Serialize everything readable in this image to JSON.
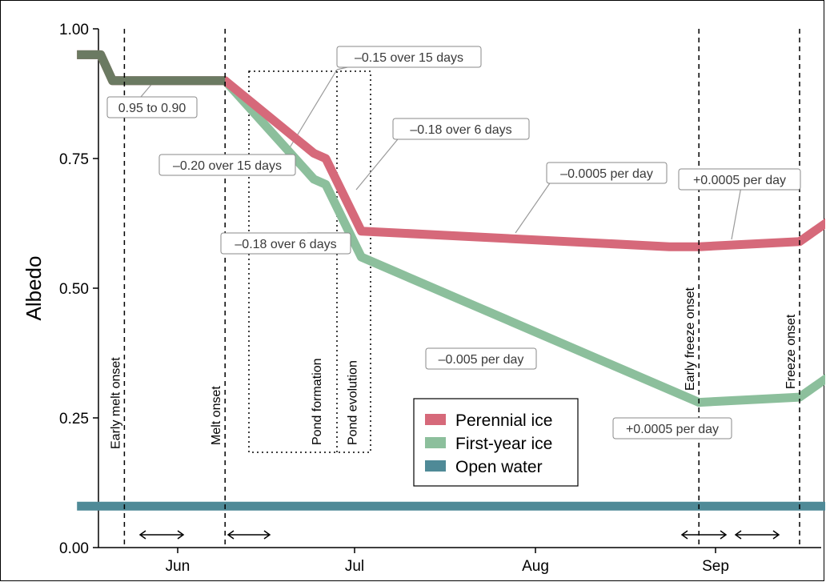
{
  "chart_data": {
    "type": "line",
    "title": "",
    "xlabel": "",
    "ylabel": "Albedo",
    "ylim": [
      0,
      1
    ],
    "yticks": [
      "0.00",
      "0.25",
      "0.50",
      "0.75",
      "1.00"
    ],
    "xticks": [
      "Jun",
      "Jul",
      "Aug",
      "Sep"
    ],
    "x_start": "May 15",
    "x_end": "Sep 19",
    "grid": false,
    "legend_position": "bottom-center",
    "series": [
      {
        "name": "Perennial ice",
        "color": "#d6697a",
        "points": [
          [
            "May 15",
            0.95
          ],
          [
            "May 19",
            0.95
          ],
          [
            "May 21",
            0.9
          ],
          [
            "Jun 9",
            0.9
          ],
          [
            "Jun 24",
            0.76
          ],
          [
            "Jun 26",
            0.75
          ],
          [
            "Jul 2",
            0.61
          ],
          [
            "Aug 23",
            0.58
          ],
          [
            "Aug 28",
            0.58
          ],
          [
            "Sep 14",
            0.59
          ],
          [
            "Sep 19",
            0.63
          ]
        ]
      },
      {
        "name": "First-year ice",
        "color": "#8cbf9c",
        "points": [
          [
            "May 15",
            0.95
          ],
          [
            "May 19",
            0.95
          ],
          [
            "May 21",
            0.9
          ],
          [
            "Jun 9",
            0.9
          ],
          [
            "Jun 24",
            0.71
          ],
          [
            "Jun 26",
            0.7
          ],
          [
            "Jul 2",
            0.56
          ],
          [
            "Aug 28",
            0.28
          ],
          [
            "Sep 14",
            0.29
          ],
          [
            "Sep 19",
            0.33
          ]
        ]
      },
      {
        "name": "Open water",
        "color": "#4f8a97",
        "points": [
          [
            "May 15",
            0.08
          ],
          [
            "Sep 19",
            0.08
          ]
        ]
      }
    ],
    "overlap_color": "#6b7a62",
    "events": [
      {
        "label": "Early melt onset",
        "date": "May 23"
      },
      {
        "label": "Melt onset",
        "date": "Jun 9"
      },
      {
        "label": "Pond formation",
        "date": "Jun 26"
      },
      {
        "label": "Pond evolution",
        "date": "Jul 2"
      },
      {
        "label": "Early freeze onset",
        "date": "Aug 28"
      },
      {
        "label": "Freeze onset",
        "date": "Sep 14"
      }
    ],
    "annotations": [
      {
        "text": "0.95 to 0.90"
      },
      {
        "text": "–0.20 over 15 days"
      },
      {
        "text": "–0.15 over 15 days"
      },
      {
        "text": "–0.18 over 6 days"
      },
      {
        "text": "–0.18 over 6 days"
      },
      {
        "text": "–0.0005 per day"
      },
      {
        "text": "+0.0005 per day"
      },
      {
        "text": "–0.005 per day"
      },
      {
        "text": "+0.0005 per day"
      }
    ]
  }
}
